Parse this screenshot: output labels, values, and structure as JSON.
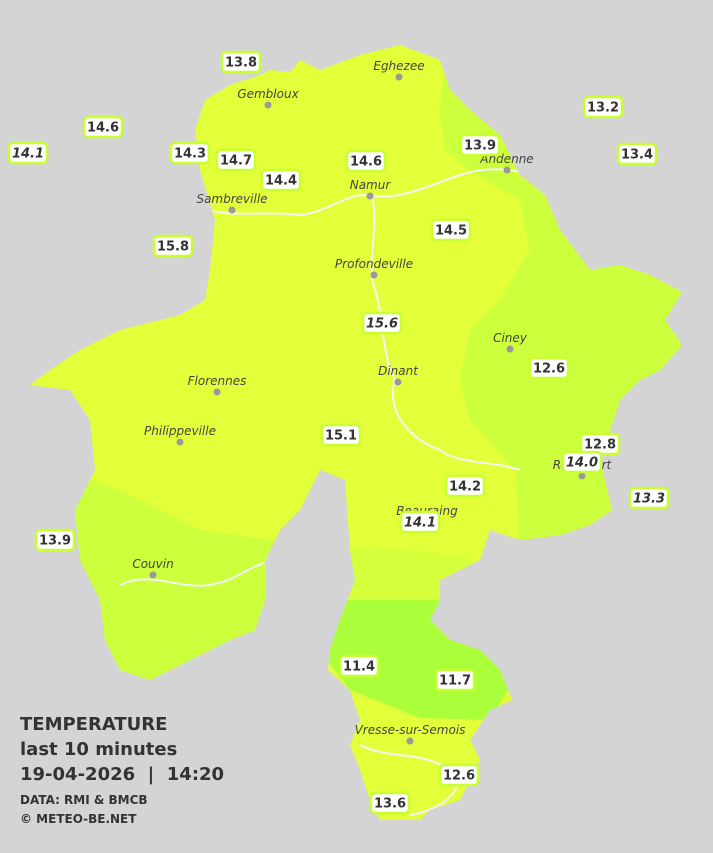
{
  "map": {
    "title": "TEMPERATURE",
    "subtitle": "last 10 minutes",
    "datetime": "19-04-2026  |  14:20",
    "source": "DATA: RMI & BMCB",
    "credit": "© METEO-BE.NET",
    "towns": [
      "Eghezee",
      "Gembloux",
      "Andenne",
      "Namur",
      "Sambreville",
      "Profondeville",
      "Ciney",
      "Dinant",
      "Florennes",
      "Philippeville",
      "Rochefort",
      "Beauraing",
      "Couvin",
      "Vresse-sur-Semois"
    ],
    "stations": [
      {
        "value": "13.8",
        "italic": false
      },
      {
        "value": "14.6",
        "italic": false
      },
      {
        "value": "14.1",
        "italic": true
      },
      {
        "value": "14.3",
        "italic": false
      },
      {
        "value": "14.7",
        "italic": false
      },
      {
        "value": "14.4",
        "italic": false
      },
      {
        "value": "14.6",
        "italic": false
      },
      {
        "value": "13.9",
        "italic": false
      },
      {
        "value": "13.2",
        "italic": false
      },
      {
        "value": "13.4",
        "italic": false
      },
      {
        "value": "15.8",
        "italic": false
      },
      {
        "value": "14.5",
        "italic": false
      },
      {
        "value": "15.6",
        "italic": true
      },
      {
        "value": "12.6",
        "italic": false
      },
      {
        "value": "15.1",
        "italic": false
      },
      {
        "value": "14.2",
        "italic": false
      },
      {
        "value": "14.1",
        "italic": true
      },
      {
        "value": "12.8",
        "italic": false
      },
      {
        "value": "14.0",
        "italic": true
      },
      {
        "value": "13.3",
        "italic": true
      },
      {
        "value": "13.9",
        "italic": false
      },
      {
        "value": "11.4",
        "italic": false
      },
      {
        "value": "11.7",
        "italic": false
      },
      {
        "value": "12.6",
        "italic": false
      },
      {
        "value": "13.6",
        "italic": false
      }
    ]
  }
}
